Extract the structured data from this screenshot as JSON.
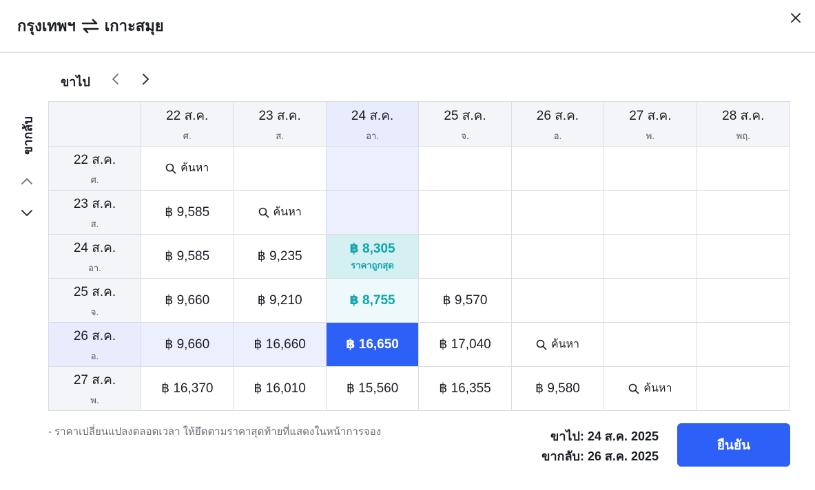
{
  "header": {
    "origin": "กรุงเทพฯ",
    "destination": "เกาะสมุย",
    "swap_icon": "swap-arrows-icon",
    "close_icon": "close-icon"
  },
  "outbound_label": "ขาไป",
  "return_label": "ขากลับ",
  "columns": [
    {
      "date": "22 ส.ค.",
      "day": "ศ."
    },
    {
      "date": "23 ส.ค.",
      "day": "ส."
    },
    {
      "date": "24 ส.ค.",
      "day": "อา."
    },
    {
      "date": "25 ส.ค.",
      "day": "จ."
    },
    {
      "date": "26 ส.ค.",
      "day": "อ."
    },
    {
      "date": "27 ส.ค.",
      "day": "พ."
    },
    {
      "date": "28 ส.ค.",
      "day": "พฤ."
    }
  ],
  "rows": [
    {
      "date": "22 ส.ค.",
      "day": "ศ."
    },
    {
      "date": "23 ส.ค.",
      "day": "ส."
    },
    {
      "date": "24 ส.ค.",
      "day": "อา."
    },
    {
      "date": "25 ส.ค.",
      "day": "จ."
    },
    {
      "date": "26 ส.ค.",
      "day": "อ."
    },
    {
      "date": "27 ส.ค.",
      "day": "พ."
    }
  ],
  "search_label": "ค้นหา",
  "cheapest_label": "ราคาถูกสุด",
  "prices": [
    [
      "search",
      "",
      "",
      "",
      "",
      "",
      ""
    ],
    [
      "฿ 9,585",
      "search",
      "",
      "",
      "",
      "",
      ""
    ],
    [
      "฿ 9,585",
      "฿ 9,235",
      "฿ 8,305",
      "",
      "",
      "",
      ""
    ],
    [
      "฿ 9,660",
      "฿ 9,210",
      "฿ 8,755",
      "฿ 9,570",
      "",
      "",
      ""
    ],
    [
      "฿ 9,660",
      "฿ 16,660",
      "฿ 16,650",
      "฿ 17,040",
      "search",
      "",
      ""
    ],
    [
      "฿ 16,370",
      "฿ 16,010",
      "฿ 15,560",
      "฿ 16,355",
      "฿ 9,580",
      "search",
      ""
    ]
  ],
  "selection": {
    "row": 4,
    "col": 2
  },
  "cheapest_cell": {
    "row": 2,
    "col": 2
  },
  "low_price_cells": [
    {
      "row": 3,
      "col": 2
    }
  ],
  "note": "- ราคาเปลี่ยนแปลงตลอดเวลา ให้ยึดตามราคาสุดท้ายที่แสดงในหน้าการจอง",
  "summary": {
    "outbound": "ขาไป: 24 ส.ค. 2025",
    "return": "ขากลับ: 26 ส.ค. 2025"
  },
  "confirm_label": "ยืนยัน",
  "colors": {
    "accent": "#2d60f7",
    "cheapest_text": "#0fa5ab",
    "cheapest_bg": "#d4f0f2",
    "highlight_band": "#eceffd"
  }
}
